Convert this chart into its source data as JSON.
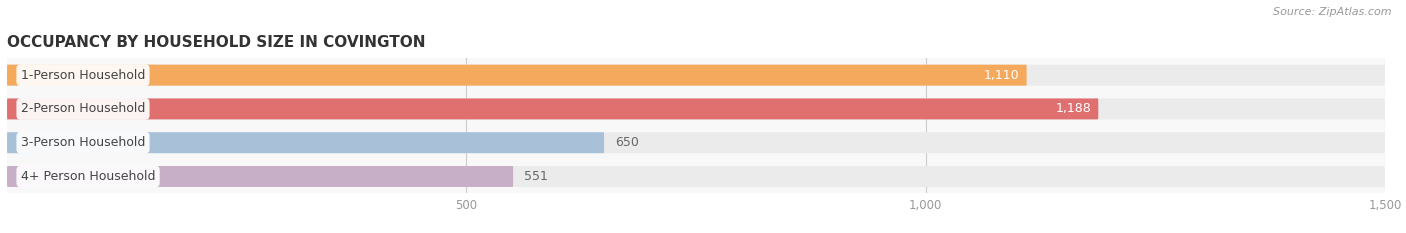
{
  "title": "OCCUPANCY BY HOUSEHOLD SIZE IN COVINGTON",
  "source": "Source: ZipAtlas.com",
  "categories": [
    "1-Person Household",
    "2-Person Household",
    "3-Person Household",
    "4+ Person Household"
  ],
  "values": [
    1110,
    1188,
    650,
    551
  ],
  "bar_colors": [
    "#f5a95c",
    "#e07070",
    "#a8c0d8",
    "#c8afc8"
  ],
  "bar_bg_color": "#ebebeb",
  "label_colors": [
    "#ffffff",
    "#ffffff",
    "#777777",
    "#777777"
  ],
  "xlim_max": 1500,
  "xticks": [
    500,
    1000,
    1500
  ],
  "title_fontsize": 11,
  "source_fontsize": 8,
  "bar_label_fontsize": 9,
  "category_fontsize": 9,
  "background_color": "#ffffff",
  "plot_bg_color": "#f8f8f8"
}
